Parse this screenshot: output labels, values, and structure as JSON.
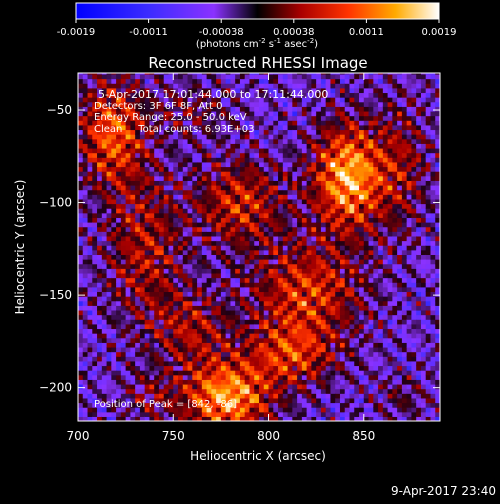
{
  "chart_data": {
    "type": "heatmap",
    "title": "Reconstructed RHESSI Image",
    "xlabel": "Heliocentric X (arcsec)",
    "ylabel": "Heliocentric Y (arcsec)",
    "xlim": [
      700,
      890
    ],
    "ylim": [
      -218,
      -30
    ],
    "xticks": [
      700,
      750,
      800,
      850
    ],
    "yticks": [
      -50,
      -100,
      -150,
      -200
    ],
    "colorbar": {
      "ticks": [
        "-0.0019",
        "-0.0011",
        "-0.00038",
        "0.00038",
        "0.0011",
        "0.0019"
      ],
      "range": [
        -0.0019,
        0.0019
      ],
      "units_prefix": "(photons cm",
      "units_exp1": "-2",
      "units_mid": " s",
      "units_exp2": "-1",
      "units_mid2": " asec",
      "units_exp3": "-2",
      "units_suffix": ")"
    },
    "annotations": [
      "5-Apr-2017 17:01:44.000 to 17:11:44.000",
      "Detectors: 3F 6F 8F, Att 0",
      "Energy Range: 25.0 - 50.0 keV",
      "Clean     Total counts: 6.93E+03"
    ],
    "peak_label": "Position of Peak = [842, -86]",
    "sources": [
      {
        "x": 842,
        "y": -86,
        "value": 0.0019,
        "sx": 13,
        "sy": 20
      },
      {
        "x": 778,
        "y": -205,
        "value": 0.0018,
        "sx": 16,
        "sy": 14
      },
      {
        "x": 718,
        "y": -62,
        "value": 0.0014,
        "sx": 12,
        "sy": 20
      },
      {
        "x": 785,
        "y": -100,
        "value": 0.0011,
        "sx": 16,
        "sy": 16
      },
      {
        "x": 820,
        "y": -148,
        "value": 0.0012,
        "sx": 20,
        "sy": 18
      },
      {
        "x": 812,
        "y": -182,
        "value": 0.0011,
        "sx": 16,
        "sy": 12
      },
      {
        "x": 735,
        "y": -125,
        "value": 0.0009,
        "sx": 14,
        "sy": 28
      },
      {
        "x": 760,
        "y": -168,
        "value": 0.0008,
        "sx": 14,
        "sy": 14
      },
      {
        "x": 870,
        "y": -80,
        "value": 0.0007,
        "sx": 10,
        "sy": 24
      },
      {
        "x": 760,
        "y": -50,
        "value": 0.0005,
        "sx": 14,
        "sy": 10
      },
      {
        "x": 870,
        "y": -205,
        "value": 0.0004,
        "sx": 10,
        "sy": 8
      },
      {
        "x": 738,
        "y": -205,
        "value": 0.0005,
        "sx": 10,
        "sy": 10
      }
    ]
  },
  "footer": {
    "timestamp": "9-Apr-2017 23:40"
  }
}
